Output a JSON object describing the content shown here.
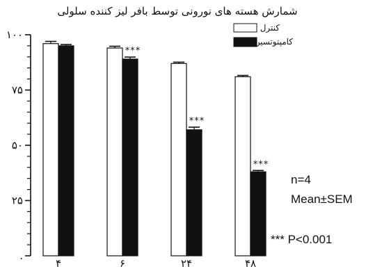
{
  "chart_data": {
    "type": "bar",
    "title": "شمارش هسته های نورونی توسط بافر لیز کننده سلولی",
    "categories": [
      "۴",
      "۶",
      "۲۴",
      "۴۸"
    ],
    "series": [
      {
        "name": "کنترل",
        "values": [
          96,
          94,
          87,
          81
        ],
        "errors": [
          1.0,
          0.8,
          0.6,
          0.6
        ],
        "color": "#ffffff"
      },
      {
        "name": "کامپتوتسین",
        "values": [
          95,
          89,
          57,
          38
        ],
        "errors": [
          0.6,
          0.9,
          1.2,
          0.6
        ],
        "color": "#111111"
      }
    ],
    "significance": [
      "",
      "***",
      "***",
      "***"
    ],
    "ylim": [
      0,
      100
    ],
    "yticks": [
      {
        "value": 0,
        "label": "."
      },
      {
        "value": 25,
        "label": "۲۵"
      },
      {
        "value": 50,
        "label": "۵۰"
      },
      {
        "value": 75,
        "label": "۷۵"
      },
      {
        "value": 100,
        "label": "۱۰۰"
      }
    ],
    "legend_position": "top-right",
    "grid": false
  },
  "annotations": {
    "n": "n=4",
    "stat": "Mean±SEM",
    "pvalue": "*** P<0.001"
  }
}
